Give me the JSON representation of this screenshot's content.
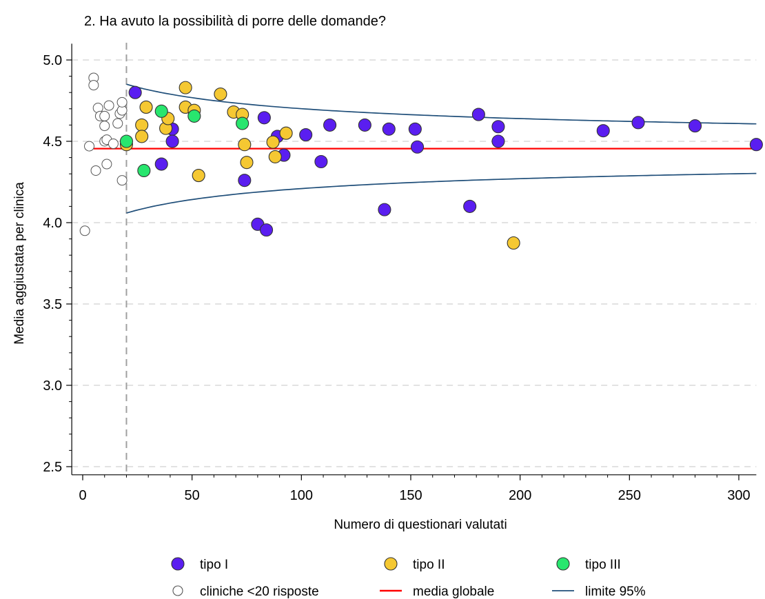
{
  "chart_data": {
    "type": "scatter",
    "title": "2. Ha avuto la possibilità di porre delle domande?",
    "xlabel": "Numero di questionari valutati",
    "ylabel": "Media aggiustata per clinica",
    "xlim": [
      -5,
      308
    ],
    "ylim": [
      2.45,
      5.1
    ],
    "xticks": [
      0,
      50,
      100,
      150,
      200,
      250,
      300
    ],
    "yticks": [
      2.5,
      3.0,
      3.5,
      4.0,
      4.5,
      5.0
    ],
    "ytick_labels": [
      "2.5",
      "3.0",
      "3.5",
      "4.0",
      "4.5",
      "5.0"
    ],
    "grid": "horizontal dashed",
    "legend_position": "bottom",
    "threshold_x": 20,
    "global_mean": 4.455,
    "colors": {
      "tipo_I": "#5a1ef0",
      "tipo_II": "#f5c832",
      "tipo_III": "#28e66e",
      "small": "#ffffff",
      "mean_line": "#ff0000",
      "limit_line": "#1f4e79",
      "grid": "#d9d9d9",
      "threshold": "#a0a0a0"
    },
    "legend": [
      {
        "key": "tipo_I",
        "label": "tipo I",
        "kind": "marker"
      },
      {
        "key": "tipo_II",
        "label": "tipo II",
        "kind": "marker"
      },
      {
        "key": "tipo_III",
        "label": "tipo III",
        "kind": "marker"
      },
      {
        "key": "small",
        "label": "cliniche <20 risposte",
        "kind": "marker"
      },
      {
        "key": "mean_line",
        "label": "media globale",
        "kind": "line"
      },
      {
        "key": "limit_line",
        "label": "limite 95%",
        "kind": "line"
      }
    ],
    "series": [
      {
        "key": "tipo_I",
        "name": "tipo I",
        "points": [
          [
            24,
            4.8
          ],
          [
            36,
            4.36
          ],
          [
            41,
            4.575
          ],
          [
            41,
            4.5
          ],
          [
            74,
            4.26
          ],
          [
            80,
            3.99
          ],
          [
            83,
            4.645
          ],
          [
            84,
            3.955
          ],
          [
            89,
            4.53
          ],
          [
            92,
            4.415
          ],
          [
            102,
            4.54
          ],
          [
            109,
            4.375
          ],
          [
            113,
            4.6
          ],
          [
            129,
            4.6
          ],
          [
            140,
            4.575
          ],
          [
            152,
            4.575
          ],
          [
            153,
            4.465
          ],
          [
            138,
            4.08
          ],
          [
            177,
            4.1
          ],
          [
            181,
            4.665
          ],
          [
            190,
            4.59
          ],
          [
            190,
            4.5
          ],
          [
            238,
            4.565
          ],
          [
            254,
            4.615
          ],
          [
            280,
            4.595
          ],
          [
            308,
            4.48
          ]
        ]
      },
      {
        "key": "tipo_II",
        "name": "tipo II",
        "points": [
          [
            20,
            4.48
          ],
          [
            27,
            4.6
          ],
          [
            27,
            4.53
          ],
          [
            29,
            4.71
          ],
          [
            38,
            4.58
          ],
          [
            39,
            4.64
          ],
          [
            47,
            4.83
          ],
          [
            47,
            4.71
          ],
          [
            51,
            4.69
          ],
          [
            53,
            4.29
          ],
          [
            63,
            4.79
          ],
          [
            69,
            4.68
          ],
          [
            73,
            4.665
          ],
          [
            74,
            4.48
          ],
          [
            75,
            4.37
          ],
          [
            87,
            4.495
          ],
          [
            88,
            4.405
          ],
          [
            93,
            4.55
          ],
          [
            197,
            3.875
          ]
        ]
      },
      {
        "key": "tipo_III",
        "name": "tipo III",
        "points": [
          [
            20,
            4.5
          ],
          [
            28,
            4.32
          ],
          [
            36,
            4.685
          ],
          [
            51,
            4.655
          ],
          [
            73,
            4.61
          ]
        ]
      },
      {
        "key": "small",
        "name": "cliniche <20 risposte",
        "points": [
          [
            1,
            3.95
          ],
          [
            3,
            4.47
          ],
          [
            5,
            4.89
          ],
          [
            5,
            4.845
          ],
          [
            6,
            4.32
          ],
          [
            7,
            4.705
          ],
          [
            8,
            4.655
          ],
          [
            10,
            4.655
          ],
          [
            10,
            4.595
          ],
          [
            10,
            4.5
          ],
          [
            11,
            4.51
          ],
          [
            11,
            4.36
          ],
          [
            12,
            4.72
          ],
          [
            14,
            4.485
          ],
          [
            16,
            4.61
          ],
          [
            17,
            4.67
          ],
          [
            18,
            4.26
          ],
          [
            18,
            4.69
          ],
          [
            18,
            4.74
          ]
        ]
      }
    ]
  }
}
